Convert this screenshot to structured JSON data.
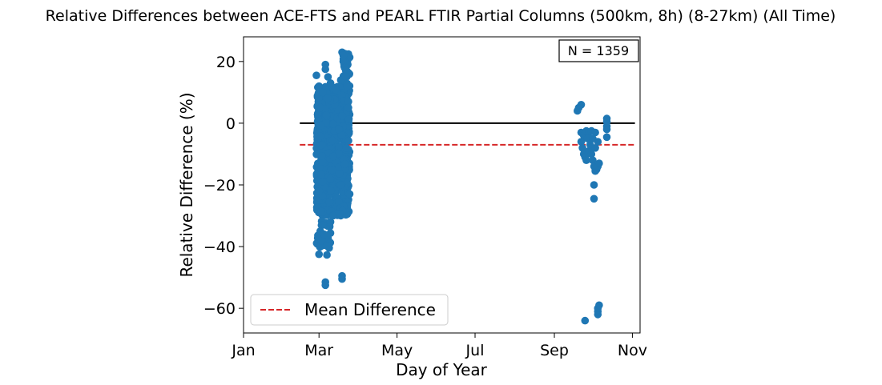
{
  "chart_data": {
    "type": "scatter",
    "title": "Relative Differences between ACE-FTS and PEARL FTIR Partial Columns (500km, 8h) (8-27km) (All Time)",
    "xlabel": "Day of Year",
    "ylabel": "Relative Difference (%)",
    "x_ticks": [
      {
        "label": "Jan",
        "doy": 1
      },
      {
        "label": "Mar",
        "doy": 60
      },
      {
        "label": "May",
        "doy": 121
      },
      {
        "label": "Jul",
        "doy": 182
      },
      {
        "label": "Sep",
        "doy": 244
      },
      {
        "label": "Nov",
        "doy": 305
      }
    ],
    "xlim": [
      "Jan 1",
      "Nov 7"
    ],
    "ylim": [
      -68,
      28
    ],
    "y_ticks": [
      20,
      0,
      -20,
      -40,
      -60
    ],
    "y_tick_labels": [
      "20",
      "0",
      "−20",
      "−40",
      "−60"
    ],
    "annotation": "N = 1359",
    "legend": {
      "position": "lower-left",
      "entries": [
        {
          "label": "Mean Difference",
          "color": "#d62728",
          "style": "dashed"
        }
      ]
    },
    "reference_lines": [
      {
        "kind": "zero",
        "y": 0,
        "x_from": "Feb 14",
        "x_to": "Nov 3",
        "color": "#000000",
        "style": "solid"
      },
      {
        "kind": "mean",
        "y": -7,
        "x_from": "Feb 14",
        "x_to": "Nov 3",
        "color": "#d62728",
        "style": "dashed"
      }
    ],
    "series": [
      {
        "color": "#1f77b4",
        "clusters": [
          {
            "x_range": [
              "Feb 27",
              "Mar 25"
            ],
            "y_range": [
              -30,
              12
            ],
            "density": "high"
          },
          {
            "x_range": [
              "Feb 27",
              "Mar 10"
            ],
            "y_range": [
              -43,
              -30
            ],
            "density": "low"
          },
          {
            "x_range": [
              "Mar 19",
              "Mar 25"
            ],
            "y_range": [
              12,
              23.5
            ],
            "density": "medium"
          }
        ],
        "points": [
          {
            "x": "Feb 27",
            "y": 15.5
          },
          {
            "x": "Mar 1",
            "y": 12
          },
          {
            "x": "Mar 4",
            "y": 10
          },
          {
            "x": "Mar 6",
            "y": 19
          },
          {
            "x": "Mar 6",
            "y": 17.5
          },
          {
            "x": "Mar 8",
            "y": 15
          },
          {
            "x": "Mar 10",
            "y": 13
          },
          {
            "x": "Mar 14",
            "y": 11
          },
          {
            "x": "Mar 18",
            "y": 14
          },
          {
            "x": "Mar 19",
            "y": 23
          },
          {
            "x": "Mar 20",
            "y": 22
          },
          {
            "x": "Mar 20",
            "y": 20
          },
          {
            "x": "Mar 21",
            "y": 18
          },
          {
            "x": "Mar 22",
            "y": 17
          },
          {
            "x": "Mar 22",
            "y": 15
          },
          {
            "x": "Mar 23",
            "y": 12
          },
          {
            "x": "Mar 24",
            "y": 7
          },
          {
            "x": "Mar 24",
            "y": 5
          },
          {
            "x": "Mar 1",
            "y": -42.5
          },
          {
            "x": "Mar 2",
            "y": -40
          },
          {
            "x": "Mar 3",
            "y": -38
          },
          {
            "x": "Mar 2",
            "y": -35
          },
          {
            "x": "Mar 4",
            "y": -33
          },
          {
            "x": "Mar 5",
            "y": -36
          },
          {
            "x": "Mar 8",
            "y": -40
          },
          {
            "x": "Mar 10",
            "y": -32
          },
          {
            "x": "Mar 12",
            "y": -30
          },
          {
            "x": "Mar 6",
            "y": -51.5
          },
          {
            "x": "Mar 6",
            "y": -52.5
          },
          {
            "x": "Mar 19",
            "y": -49.5
          },
          {
            "x": "Mar 19",
            "y": -50.5
          },
          {
            "x": "Sep 19",
            "y": 4
          },
          {
            "x": "Sep 20",
            "y": 5
          },
          {
            "x": "Sep 22",
            "y": 6
          },
          {
            "x": "Sep 22",
            "y": -3
          },
          {
            "x": "Sep 24",
            "y": -4
          },
          {
            "x": "Sep 26",
            "y": -2.5
          },
          {
            "x": "Sep 28",
            "y": -3
          },
          {
            "x": "Sep 30",
            "y": -2.5
          },
          {
            "x": "Oct 3",
            "y": -3
          },
          {
            "x": "Sep 22",
            "y": -6
          },
          {
            "x": "Sep 23",
            "y": -8
          },
          {
            "x": "Sep 24",
            "y": -10
          },
          {
            "x": "Sep 25",
            "y": -11
          },
          {
            "x": "Sep 26",
            "y": -12
          },
          {
            "x": "Sep 28",
            "y": -9
          },
          {
            "x": "Sep 29",
            "y": -7
          },
          {
            "x": "Sep 30",
            "y": -10
          },
          {
            "x": "Oct 1",
            "y": -12
          },
          {
            "x": "Oct 2",
            "y": -14
          },
          {
            "x": "Oct 3",
            "y": -15.5
          },
          {
            "x": "Oct 4",
            "y": -15
          },
          {
            "x": "Oct 5",
            "y": -14
          },
          {
            "x": "Oct 6",
            "y": -13
          },
          {
            "x": "Oct 3",
            "y": -8
          },
          {
            "x": "Oct 5",
            "y": -6
          },
          {
            "x": "Sep 27",
            "y": -5
          },
          {
            "x": "Oct 1",
            "y": -5
          },
          {
            "x": "Oct 2",
            "y": -20
          },
          {
            "x": "Oct 2",
            "y": -24.5
          },
          {
            "x": "Sep 25",
            "y": -64
          },
          {
            "x": "Oct 5",
            "y": -62
          },
          {
            "x": "Oct 5",
            "y": -61
          },
          {
            "x": "Oct 5",
            "y": -60
          },
          {
            "x": "Oct 6",
            "y": -59
          },
          {
            "x": "Oct 12",
            "y": 1.5
          },
          {
            "x": "Oct 12",
            "y": 0.5
          },
          {
            "x": "Oct 12",
            "y": -1
          },
          {
            "x": "Oct 12",
            "y": -4.5
          },
          {
            "x": "Oct 12",
            "y": -2
          }
        ]
      }
    ]
  }
}
